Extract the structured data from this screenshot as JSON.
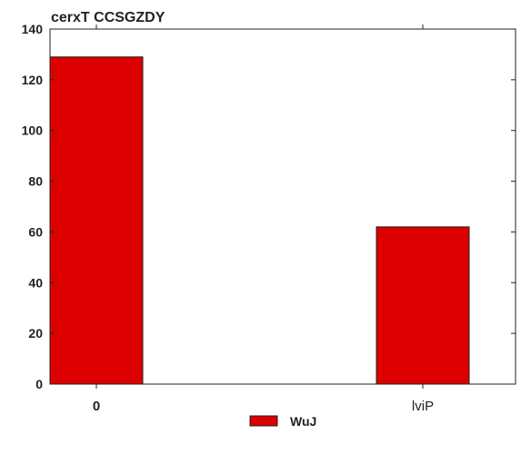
{
  "chart_data": {
    "type": "bar",
    "title": "cerxT CCSGZDY",
    "xlabel": "",
    "ylabel": "",
    "categories": [
      "0",
      "lviP"
    ],
    "series": [
      {
        "name": "WuJ",
        "values": [
          129,
          62
        ],
        "color": "#dd0000"
      }
    ],
    "ylim": [
      0,
      140
    ],
    "yticks": [
      0,
      20,
      40,
      60,
      80,
      100,
      120,
      140
    ],
    "grid": false,
    "legend_position": "bottom-center"
  }
}
